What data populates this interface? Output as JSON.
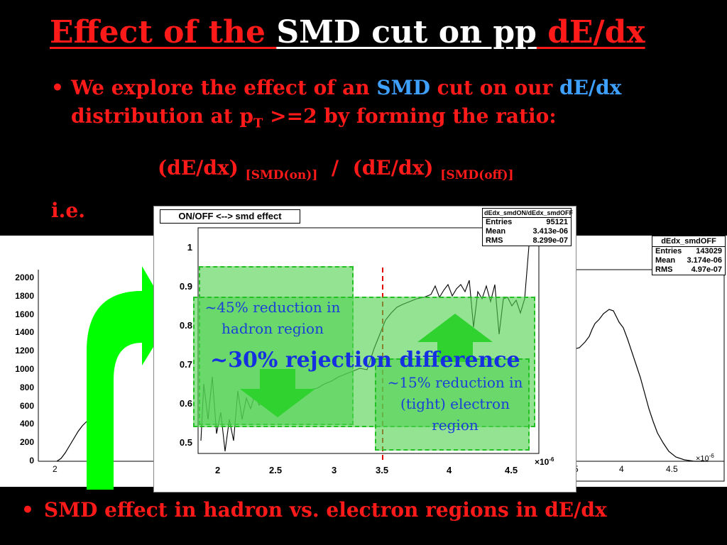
{
  "title": {
    "part1": "Effect of the ",
    "part2": "SMD cut on pp",
    "part3": " dE/dx"
  },
  "bullet1": {
    "dot": "•",
    "t1": "We explore the effect of an ",
    "t2": "SMD",
    "t3": " cut on our ",
    "t4": "dE/dx",
    "t5": "distribution at  p",
    "t5sub": "T",
    "t6": " >=2  by forming the ratio:"
  },
  "ratio": {
    "num": "(dE/dx) ",
    "num_sub": "[SMD(on)]",
    "sep": "  /  ",
    "den": "(dE/dx) ",
    "den_sub": "[SMD(off)]"
  },
  "ie": "i.e.",
  "right_plot": {
    "stats_title": "dEdx_smdOFF",
    "stats": [
      [
        "Entries",
        "143029"
      ],
      [
        "Mean",
        "3.174e-06"
      ],
      [
        "RMS",
        "4.97e-07"
      ]
    ],
    "x_ticks": [
      "5",
      "4",
      "4.5"
    ],
    "x_exp": "×10",
    "x_exp_pow": "-6"
  },
  "left_plot": {
    "y_ticks": [
      "2000",
      "1800",
      "1600",
      "1400",
      "1200",
      "1000",
      "800",
      "600",
      "400",
      "200",
      "0"
    ],
    "x_ticks": [
      "2",
      "5"
    ]
  },
  "center_plot": {
    "title": "ON/OFF <--> smd effect",
    "stats_title": "dEdx_smdON/dEdx_smdOFF",
    "stats": [
      [
        "Entries",
        "95121"
      ],
      [
        "Mean",
        "3.413e-06"
      ],
      [
        "RMS",
        "8.299e-07"
      ]
    ],
    "y_ticks": [
      "1",
      "0.9",
      "0.8",
      "0.7",
      "0.6",
      "0.5"
    ],
    "x_ticks": [
      "2",
      "2.5",
      "3",
      "3.5",
      "4",
      "4.5"
    ],
    "x_exp": "×10",
    "x_exp_pow": "-6"
  },
  "annotations": {
    "hadron": "~45% reduction in hadron region",
    "electron": "~15% reduction in (tight) electron region",
    "difference": "~30% rejection difference"
  },
  "bottom_bullet": {
    "dot": "•",
    "text": "SMD effect in hadron vs. electron regions in dE/dx"
  },
  "colors": {
    "red": "#ff1a1a",
    "blue": "#3ea0ff",
    "green_arrow": "#00ff00",
    "highlight": "#50d250",
    "cut_line": "#e00000"
  }
}
